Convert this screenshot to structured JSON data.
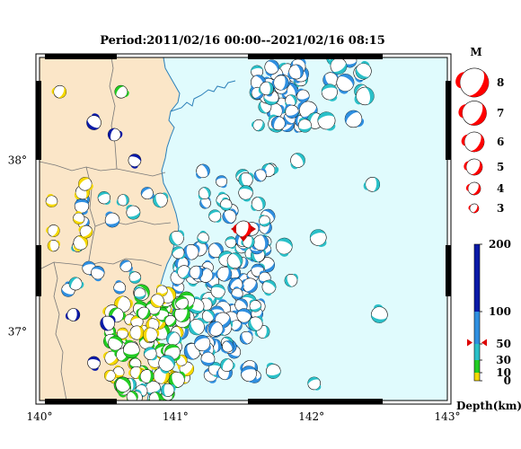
{
  "title": "Period:2011/02/16 00:00--2021/02/16 08:15",
  "map": {
    "lon_range": [
      140,
      143
    ],
    "lat_range": [
      36.6,
      38.6
    ],
    "lon_ticks": [
      {
        "value": 140,
        "label": "140°"
      },
      {
        "value": 141,
        "label": "141°"
      },
      {
        "value": 142,
        "label": "142°"
      },
      {
        "value": 143,
        "label": "143°"
      }
    ],
    "lat_ticks": [
      {
        "value": 38,
        "label": "38°"
      },
      {
        "value": 37,
        "label": "37°"
      }
    ],
    "colors": {
      "land": "#fbe6c8",
      "sea": "#e0fbfd",
      "coast": "#2b7fb8",
      "prefecture": "#777777",
      "highlight": "#ff0000"
    }
  },
  "magnitude_legend": {
    "title": "M",
    "items": [
      {
        "mag": 8,
        "label": "8"
      },
      {
        "mag": 7,
        "label": "7"
      },
      {
        "mag": 6,
        "label": "6"
      },
      {
        "mag": 5,
        "label": "5"
      },
      {
        "mag": 4,
        "label": "4"
      },
      {
        "mag": 3,
        "label": "3"
      }
    ]
  },
  "depth_scale": {
    "title": "Depth(km)",
    "ticks": [
      {
        "value": 0,
        "label": "0"
      },
      {
        "value": 10,
        "label": "10"
      },
      {
        "value": 30,
        "label": "30"
      },
      {
        "value": 50,
        "label": "50"
      },
      {
        "value": 100,
        "label": "100"
      },
      {
        "value": 200,
        "label": "200"
      }
    ],
    "bands": [
      {
        "from": 0,
        "to": 10,
        "color": "#f5d800"
      },
      {
        "from": 10,
        "to": 30,
        "color": "#22cc22"
      },
      {
        "from": 30,
        "to": 50,
        "color": "#2ac0c8"
      },
      {
        "from": 50,
        "to": 100,
        "color": "#2f8fe0"
      },
      {
        "from": 100,
        "to": 200,
        "color": "#0a1aa8"
      }
    ],
    "marker_depth": 52
  },
  "highlight_event": {
    "lon": 141.5,
    "lat": 37.6,
    "mag": 4.6,
    "rot": 20
  }
}
